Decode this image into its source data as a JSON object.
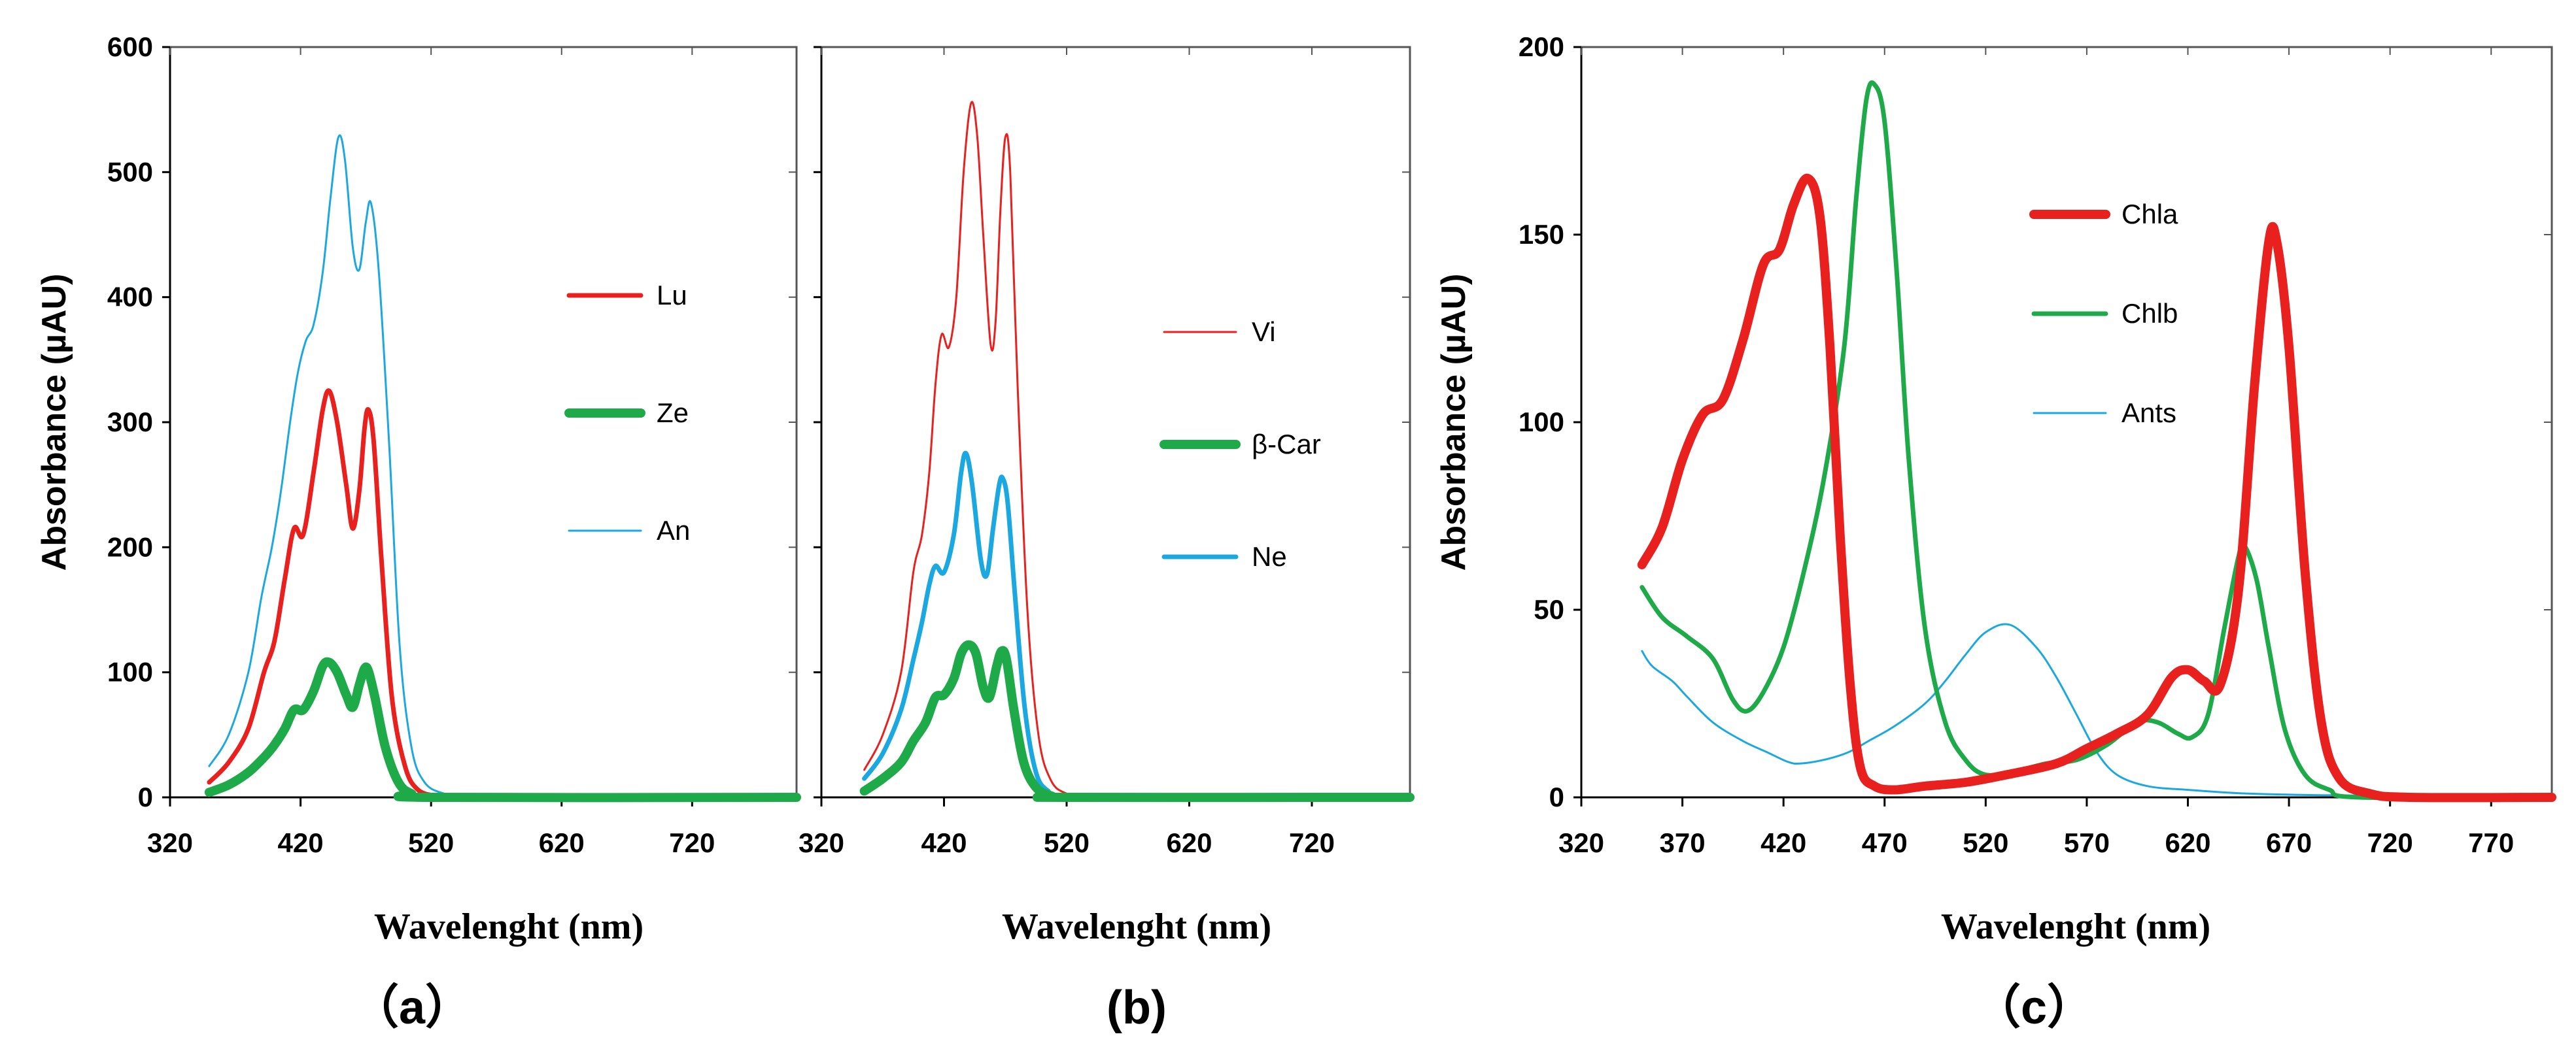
{
  "chart_data": [
    {
      "type": "line",
      "panel_label": "（a）",
      "xlabel": "Wavelenght (nm)",
      "ylabel": "Absorbance (µAU)",
      "xlim": [
        320,
        800
      ],
      "ylim": [
        0,
        600
      ],
      "xticks": [
        320,
        420,
        520,
        620,
        720
      ],
      "yticks": [
        0,
        100,
        200,
        300,
        400,
        500,
        600
      ],
      "legend_position": "right",
      "series": [
        {
          "name": "Lu",
          "color": "#e8201e",
          "width": "medium",
          "points": [
            [
              350,
              12
            ],
            [
              365,
              28
            ],
            [
              380,
              55
            ],
            [
              392,
              100
            ],
            [
              400,
              125
            ],
            [
              408,
              175
            ],
            [
              415,
              215
            ],
            [
              422,
              210
            ],
            [
              430,
              260
            ],
            [
              437,
              310
            ],
            [
              442,
              325
            ],
            [
              448,
              300
            ],
            [
              455,
              250
            ],
            [
              460,
              215
            ],
            [
              465,
              245
            ],
            [
              469,
              295
            ],
            [
              472,
              310
            ],
            [
              476,
              285
            ],
            [
              482,
              190
            ],
            [
              490,
              80
            ],
            [
              500,
              25
            ],
            [
              510,
              6
            ],
            [
              525,
              1
            ],
            [
              540,
              0
            ],
            [
              800,
              0
            ]
          ]
        },
        {
          "name": "Ze",
          "color": "#1faa4a",
          "width": "thick",
          "points": [
            [
              350,
              4
            ],
            [
              365,
              10
            ],
            [
              380,
              20
            ],
            [
              392,
              32
            ],
            [
              400,
              42
            ],
            [
              408,
              55
            ],
            [
              415,
              70
            ],
            [
              422,
              70
            ],
            [
              430,
              85
            ],
            [
              437,
              105
            ],
            [
              442,
              108
            ],
            [
              448,
              100
            ],
            [
              455,
              82
            ],
            [
              460,
              72
            ],
            [
              465,
              90
            ],
            [
              469,
              103
            ],
            [
              472,
              101
            ],
            [
              477,
              80
            ],
            [
              485,
              40
            ],
            [
              495,
              12
            ],
            [
              505,
              3
            ],
            [
              520,
              0
            ],
            [
              800,
              0
            ]
          ]
        },
        {
          "name": "An",
          "color": "#1ba8e0",
          "width": "thin",
          "points": [
            [
              350,
              25
            ],
            [
              365,
              50
            ],
            [
              380,
              100
            ],
            [
              390,
              160
            ],
            [
              398,
              200
            ],
            [
              405,
              245
            ],
            [
              412,
              300
            ],
            [
              418,
              340
            ],
            [
              424,
              365
            ],
            [
              430,
              378
            ],
            [
              437,
              420
            ],
            [
              443,
              480
            ],
            [
              449,
              528
            ],
            [
              454,
              510
            ],
            [
              460,
              440
            ],
            [
              465,
              422
            ],
            [
              470,
              460
            ],
            [
              474,
              475
            ],
            [
              480,
              420
            ],
            [
              488,
              280
            ],
            [
              496,
              120
            ],
            [
              505,
              40
            ],
            [
              515,
              12
            ],
            [
              530,
              3
            ],
            [
              550,
              0
            ],
            [
              800,
              0
            ]
          ]
        }
      ]
    },
    {
      "type": "line",
      "panel_label": "(b)",
      "xlabel": "Wavelenght (nm)",
      "ylabel": "",
      "xlim": [
        320,
        800
      ],
      "ylim": [
        0,
        600
      ],
      "xticks": [
        320,
        420,
        520,
        620,
        720
      ],
      "yticks": [
        0,
        100,
        200,
        300,
        400,
        500,
        600
      ],
      "legend_position": "right",
      "series": [
        {
          "name": "Vi",
          "color": "#e8201e",
          "width": "thin",
          "points": [
            [
              355,
              22
            ],
            [
              370,
              50
            ],
            [
              385,
              100
            ],
            [
              395,
              180
            ],
            [
              402,
              210
            ],
            [
              408,
              260
            ],
            [
              413,
              330
            ],
            [
              418,
              370
            ],
            [
              424,
              360
            ],
            [
              430,
              400
            ],
            [
              436,
              500
            ],
            [
              442,
              555
            ],
            [
              447,
              530
            ],
            [
              452,
              450
            ],
            [
              458,
              362
            ],
            [
              462,
              380
            ],
            [
              466,
              470
            ],
            [
              470,
              528
            ],
            [
              474,
              500
            ],
            [
              480,
              330
            ],
            [
              488,
              150
            ],
            [
              497,
              50
            ],
            [
              507,
              14
            ],
            [
              520,
              3
            ],
            [
              540,
              0
            ],
            [
              800,
              0
            ]
          ]
        },
        {
          "name": "β-Car",
          "color": "#1faa4a",
          "width": "thick",
          "points": [
            [
              355,
              5
            ],
            [
              370,
              15
            ],
            [
              385,
              28
            ],
            [
              395,
              45
            ],
            [
              405,
              60
            ],
            [
              413,
              80
            ],
            [
              420,
              82
            ],
            [
              428,
              95
            ],
            [
              434,
              115
            ],
            [
              440,
              122
            ],
            [
              446,
              115
            ],
            [
              452,
              88
            ],
            [
              457,
              80
            ],
            [
              463,
              105
            ],
            [
              467,
              117
            ],
            [
              471,
              110
            ],
            [
              477,
              70
            ],
            [
              485,
              28
            ],
            [
              495,
              8
            ],
            [
              508,
              1
            ],
            [
              520,
              0
            ],
            [
              800,
              0
            ]
          ]
        },
        {
          "name": "Ne",
          "color": "#1ba8e0",
          "width": "medium",
          "points": [
            [
              355,
              15
            ],
            [
              370,
              35
            ],
            [
              385,
              70
            ],
            [
              395,
              110
            ],
            [
              402,
              140
            ],
            [
              408,
              170
            ],
            [
              413,
              185
            ],
            [
              420,
              180
            ],
            [
              428,
              210
            ],
            [
              434,
              260
            ],
            [
              438,
              275
            ],
            [
              443,
              250
            ],
            [
              450,
              190
            ],
            [
              455,
              178
            ],
            [
              460,
              215
            ],
            [
              465,
              250
            ],
            [
              468,
              255
            ],
            [
              472,
              235
            ],
            [
              478,
              160
            ],
            [
              486,
              70
            ],
            [
              495,
              20
            ],
            [
              505,
              5
            ],
            [
              520,
              0
            ],
            [
              800,
              0
            ]
          ]
        }
      ]
    },
    {
      "type": "line",
      "panel_label": "（c）",
      "xlabel": "Wavelenght (nm)",
      "ylabel": "Absorbance (µAU)",
      "xlim": [
        320,
        800
      ],
      "ylim": [
        0,
        200
      ],
      "xticks": [
        320,
        370,
        420,
        470,
        520,
        570,
        620,
        670,
        720,
        770
      ],
      "yticks": [
        0,
        50,
        100,
        150,
        200
      ],
      "legend_position": "center",
      "series": [
        {
          "name": "Chla",
          "color": "#e8201e",
          "width": "thick",
          "points": [
            [
              350,
              62
            ],
            [
              360,
              72
            ],
            [
              370,
              90
            ],
            [
              380,
              102
            ],
            [
              390,
              106
            ],
            [
              400,
              122
            ],
            [
              410,
              142
            ],
            [
              418,
              146
            ],
            [
              425,
              158
            ],
            [
              432,
              165
            ],
            [
              438,
              155
            ],
            [
              443,
              120
            ],
            [
              448,
              70
            ],
            [
              453,
              30
            ],
            [
              458,
              8
            ],
            [
              465,
              3
            ],
            [
              475,
              2
            ],
            [
              490,
              3
            ],
            [
              510,
              4
            ],
            [
              530,
              6
            ],
            [
              555,
              9
            ],
            [
              570,
              13
            ],
            [
              585,
              17
            ],
            [
              600,
              22
            ],
            [
              612,
              32
            ],
            [
              620,
              34
            ],
            [
              628,
              31
            ],
            [
              636,
              30
            ],
            [
              645,
              55
            ],
            [
              653,
              110
            ],
            [
              660,
              148
            ],
            [
              664,
              148
            ],
            [
              670,
              120
            ],
            [
              678,
              60
            ],
            [
              686,
              20
            ],
            [
              695,
              5
            ],
            [
              710,
              1
            ],
            [
              730,
              0
            ],
            [
              800,
              0
            ]
          ]
        },
        {
          "name": "Chlb",
          "color": "#1faa4a",
          "width": "medium",
          "points": [
            [
              350,
              56
            ],
            [
              360,
              48
            ],
            [
              372,
              43
            ],
            [
              385,
              37
            ],
            [
              395,
              26
            ],
            [
              402,
              23
            ],
            [
              410,
              28
            ],
            [
              420,
              40
            ],
            [
              430,
              60
            ],
            [
              440,
              85
            ],
            [
              450,
              120
            ],
            [
              456,
              160
            ],
            [
              461,
              186
            ],
            [
              465,
              190
            ],
            [
              470,
              180
            ],
            [
              476,
              140
            ],
            [
              482,
              90
            ],
            [
              490,
              45
            ],
            [
              500,
              20
            ],
            [
              510,
              10
            ],
            [
              520,
              6
            ],
            [
              535,
              7
            ],
            [
              550,
              9
            ],
            [
              565,
              10
            ],
            [
              580,
              14
            ],
            [
              595,
              20
            ],
            [
              605,
              20
            ],
            [
              615,
              17
            ],
            [
              622,
              16
            ],
            [
              630,
              22
            ],
            [
              638,
              45
            ],
            [
              645,
              64
            ],
            [
              648,
              67
            ],
            [
              654,
              58
            ],
            [
              660,
              40
            ],
            [
              668,
              18
            ],
            [
              678,
              6
            ],
            [
              690,
              2
            ],
            [
              705,
              0
            ],
            [
              800,
              0
            ]
          ]
        },
        {
          "name": "Ants",
          "color": "#1ba8e0",
          "width": "thin",
          "points": [
            [
              350,
              39
            ],
            [
              355,
              35
            ],
            [
              365,
              31
            ],
            [
              372,
              27
            ],
            [
              385,
              20
            ],
            [
              400,
              15
            ],
            [
              412,
              12
            ],
            [
              422,
              9.5
            ],
            [
              428,
              9
            ],
            [
              440,
              10
            ],
            [
              452,
              12
            ],
            [
              462,
              15
            ],
            [
              475,
              19
            ],
            [
              490,
              25
            ],
            [
              500,
              31
            ],
            [
              510,
              38
            ],
            [
              520,
              44
            ],
            [
              532,
              46
            ],
            [
              545,
              40
            ],
            [
              555,
              32
            ],
            [
              565,
              22
            ],
            [
              575,
              12
            ],
            [
              585,
              6
            ],
            [
              600,
              3
            ],
            [
              620,
              2
            ],
            [
              650,
              1
            ],
            [
              700,
              0.5
            ],
            [
              800,
              0.5
            ]
          ]
        }
      ]
    }
  ]
}
